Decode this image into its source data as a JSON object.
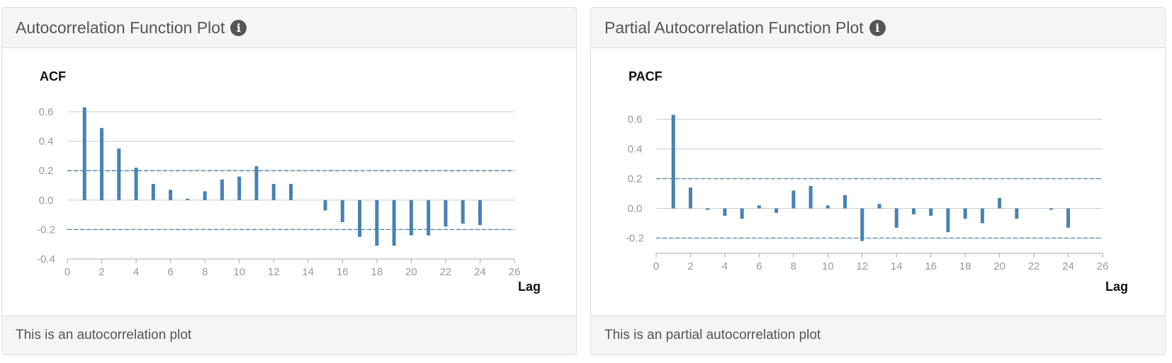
{
  "panels": [
    {
      "title": "Autocorrelation Function Plot",
      "footer": "This is an autocorrelation plot"
    },
    {
      "title": "Partial Autocorrelation Function Plot",
      "footer": "This is an partial autocorrelation plot"
    }
  ],
  "colors": {
    "bar": "#4682b4",
    "confidence_line": "#4682b4",
    "grid": "#cccccc",
    "axis": "#aaaaaa",
    "tick_label": "#999999"
  },
  "chart_data": [
    {
      "type": "bar",
      "title": "ACF",
      "xlabel": "Lag",
      "ylabel": "",
      "xlim": [
        0,
        26
      ],
      "ylim": [
        -0.4,
        0.6
      ],
      "xticks": [
        0,
        2,
        4,
        6,
        8,
        10,
        12,
        14,
        16,
        18,
        20,
        22,
        24,
        26
      ],
      "yticks": [
        -0.4,
        -0.2,
        0.0,
        0.2,
        0.4,
        0.6
      ],
      "ytick_labels": [
        "-0.4",
        "-0.2",
        "0.0",
        "0.2",
        "0.4",
        "0.6"
      ],
      "grid": true,
      "confidence_bounds": [
        0.2,
        -0.2
      ],
      "x": [
        1,
        2,
        3,
        4,
        5,
        6,
        7,
        8,
        9,
        10,
        11,
        12,
        13,
        14,
        15,
        16,
        17,
        18,
        19,
        20,
        21,
        22,
        23,
        24
      ],
      "values": [
        0.63,
        0.49,
        0.35,
        0.22,
        0.11,
        0.07,
        0.01,
        0.06,
        0.14,
        0.16,
        0.23,
        0.11,
        0.11,
        0.0,
        -0.07,
        -0.15,
        -0.25,
        -0.31,
        -0.31,
        -0.24,
        -0.24,
        -0.18,
        -0.16,
        -0.17
      ]
    },
    {
      "type": "bar",
      "title": "PACF",
      "xlabel": "Lag",
      "ylabel": "",
      "xlim": [
        0,
        26
      ],
      "ylim": [
        -0.35,
        0.65
      ],
      "xticks": [
        0,
        2,
        4,
        6,
        8,
        10,
        12,
        14,
        16,
        18,
        20,
        22,
        24,
        26
      ],
      "yticks": [
        -0.2,
        0.0,
        0.2,
        0.4,
        0.6
      ],
      "ytick_labels": [
        "-0.2",
        "0.0",
        "0.2",
        "0.4",
        "0.6"
      ],
      "grid": true,
      "confidence_bounds": [
        0.2,
        -0.2
      ],
      "x": [
        1,
        2,
        3,
        4,
        5,
        6,
        7,
        8,
        9,
        10,
        11,
        12,
        13,
        14,
        15,
        16,
        17,
        18,
        19,
        20,
        21,
        22,
        23,
        24
      ],
      "values": [
        0.63,
        0.14,
        -0.01,
        -0.05,
        -0.07,
        0.02,
        -0.03,
        0.12,
        0.15,
        0.02,
        0.09,
        -0.22,
        0.03,
        -0.13,
        -0.04,
        -0.05,
        -0.16,
        -0.07,
        -0.1,
        0.07,
        -0.07,
        0.0,
        -0.01,
        -0.13
      ]
    }
  ]
}
